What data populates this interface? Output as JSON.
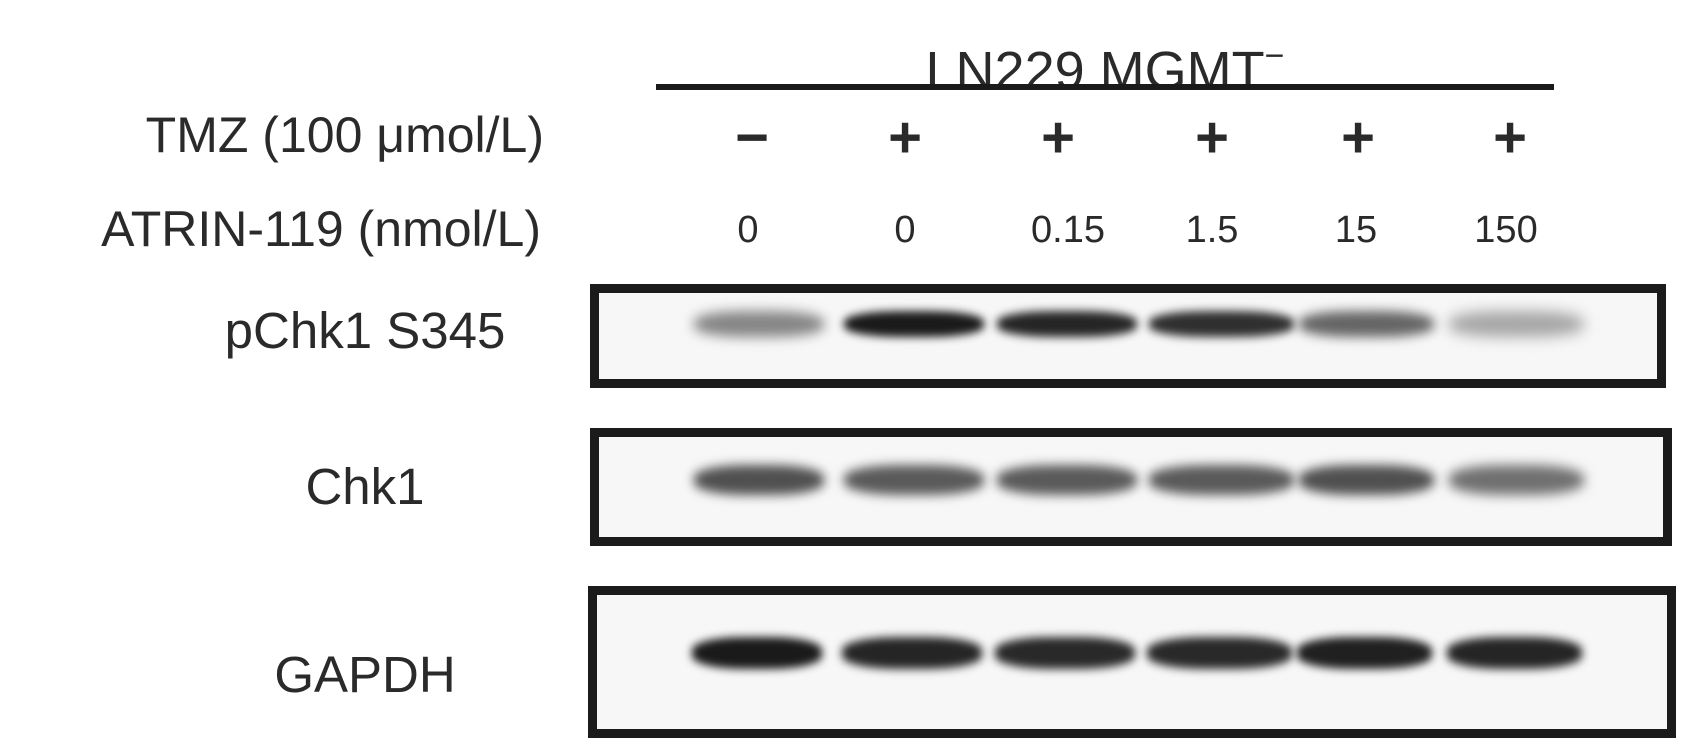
{
  "header": {
    "cell_line": "LN229 MGMT",
    "superscript": "−"
  },
  "conditions": {
    "tmz_label": "TMZ (100 μmol/L)",
    "atrin_label": "ATRIN-119 (nmol/L)",
    "tmz": [
      "−",
      "+",
      "+",
      "+",
      "+",
      "+"
    ],
    "atrin_doses": [
      "0",
      "0",
      "0.15",
      "1.5",
      "15",
      "150"
    ]
  },
  "blots": [
    {
      "label": "pChk1 S345",
      "band_intensity": [
        0.45,
        0.95,
        0.9,
        0.85,
        0.6,
        0.3
      ]
    },
    {
      "label": "Chk1",
      "band_intensity": [
        0.7,
        0.65,
        0.65,
        0.65,
        0.7,
        0.55
      ]
    },
    {
      "label": "GAPDH",
      "band_intensity": [
        0.95,
        0.9,
        0.88,
        0.88,
        0.92,
        0.9
      ]
    }
  ]
}
